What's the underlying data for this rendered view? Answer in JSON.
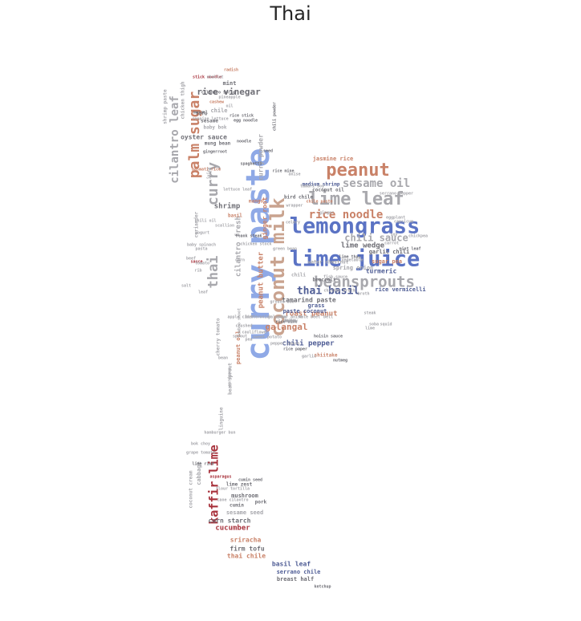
{
  "title": "Thai",
  "palette": {
    "blue": "#5b73c4",
    "light_blue": "#8fa9e6",
    "tan": "#c9a38f",
    "salmon": "#c98167",
    "red": "#a8323c",
    "gray": "#a8a8ad",
    "dark": "#6e6e75",
    "navy": "#4f5d95"
  },
  "words": [
    {
      "text": "curry paste",
      "color": "light_blue"
    },
    {
      "text": "lemongrass",
      "color": "blue"
    },
    {
      "text": "lime juice",
      "color": "blue"
    },
    {
      "text": "coconut milk",
      "color": "tan"
    },
    {
      "text": "peanut",
      "color": "salmon"
    },
    {
      "text": "lime leaf",
      "color": "gray"
    },
    {
      "text": "beansprouts",
      "color": "gray"
    },
    {
      "text": "palm sugar",
      "color": "salmon"
    },
    {
      "text": "thai",
      "color": "gray"
    },
    {
      "text": "curry",
      "color": "gray"
    },
    {
      "text": "cilantro leaf",
      "color": "gray"
    },
    {
      "text": "rice noodle",
      "color": "salmon"
    },
    {
      "text": "sesame oil",
      "color": "gray"
    },
    {
      "text": "thai basil",
      "color": "navy"
    },
    {
      "text": "chili sauce",
      "color": "gray"
    },
    {
      "text": "kaffir lime",
      "color": "red"
    },
    {
      "text": "rice vinegar",
      "color": "dark"
    },
    {
      "text": "galangal",
      "color": "salmon"
    },
    {
      "text": "chili pepper",
      "color": "navy"
    },
    {
      "text": "shrimp",
      "color": "dark"
    },
    {
      "text": "cilantro fresh",
      "color": "gray"
    },
    {
      "text": "peanut butter",
      "color": "salmon"
    },
    {
      "text": "lime wedge",
      "color": "dark"
    },
    {
      "text": "roast peanut",
      "color": "salmon"
    },
    {
      "text": "curry powder",
      "color": "gray"
    },
    {
      "text": "ginger root",
      "color": "salmon"
    },
    {
      "text": "oyster sauce",
      "color": "dark"
    },
    {
      "text": "turmeric",
      "color": "navy"
    },
    {
      "text": "rice vermicelli",
      "color": "navy"
    },
    {
      "text": "sugar pea",
      "color": "salmon"
    },
    {
      "text": "garlic chili",
      "color": "dark"
    },
    {
      "text": "jasmine rice",
      "color": "salmon"
    },
    {
      "text": "paste coconut",
      "color": "navy"
    },
    {
      "text": "tamarind paste",
      "color": "dark"
    },
    {
      "text": "spring onion",
      "color": "gray"
    },
    {
      "text": "grass",
      "color": "navy"
    },
    {
      "text": "mint",
      "color": "dark"
    },
    {
      "text": "chile",
      "color": "gray"
    },
    {
      "text": "peanut oil",
      "color": "salmon"
    },
    {
      "text": "cucumber",
      "color": "red"
    },
    {
      "text": "sriracha",
      "color": "salmon"
    },
    {
      "text": "firm tofu",
      "color": "dark"
    },
    {
      "text": "thai chile",
      "color": "salmon"
    },
    {
      "text": "basil leaf",
      "color": "navy"
    },
    {
      "text": "serrano chile",
      "color": "navy"
    },
    {
      "text": "breast half",
      "color": "dark"
    },
    {
      "text": "corn starch",
      "color": "dark"
    },
    {
      "text": "mushroom",
      "color": "dark"
    },
    {
      "text": "sesame seed",
      "color": "gray"
    },
    {
      "text": "cumin",
      "color": "dark"
    },
    {
      "text": "pork",
      "color": "dark"
    },
    {
      "text": "lime zest",
      "color": "dark"
    },
    {
      "text": "cabbage",
      "color": "gray"
    },
    {
      "text": "coconut cream",
      "color": "gray"
    },
    {
      "text": "shrimp paste",
      "color": "gray"
    },
    {
      "text": "chicken thigh",
      "color": "gray"
    },
    {
      "text": "baby bok",
      "color": "gray"
    },
    {
      "text": "mung bean",
      "color": "dark"
    },
    {
      "text": "tofu",
      "color": "dark"
    },
    {
      "text": "sesame",
      "color": "dark"
    },
    {
      "text": "medium shrimp",
      "color": "navy"
    },
    {
      "text": "coconut oil",
      "color": "dark"
    },
    {
      "text": "bird chile",
      "color": "dark"
    },
    {
      "text": "basil",
      "color": "salmon"
    },
    {
      "text": "mango",
      "color": "salmon"
    },
    {
      "text": "shiitake",
      "color": "salmon"
    },
    {
      "text": "water chestnut",
      "color": "gray"
    },
    {
      "text": "broccoli",
      "color": "dark"
    },
    {
      "text": "chili",
      "color": "gray"
    },
    {
      "text": "coriander",
      "color": "gray"
    },
    {
      "text": "cherry tomato",
      "color": "gray"
    },
    {
      "text": "bean sprout",
      "color": "gray"
    },
    {
      "text": "linguine",
      "color": "gray"
    },
    {
      "text": "seed",
      "color": "dark"
    },
    {
      "text": "spaghetti",
      "color": "dark"
    },
    {
      "text": "gingerroot",
      "color": "dark"
    },
    {
      "text": "romaine lettuce",
      "color": "gray"
    },
    {
      "text": "cashew",
      "color": "salmon"
    },
    {
      "text": "radish",
      "color": "salmon"
    },
    {
      "text": "stick noodle",
      "color": "red"
    },
    {
      "text": "rice paper",
      "color": "dark"
    },
    {
      "text": "ketchup",
      "color": "dark"
    },
    {
      "text": "eggplant",
      "color": "gray"
    },
    {
      "text": "mint leaf",
      "color": "dark"
    },
    {
      "text": "serrano pepper",
      "color": "gray"
    },
    {
      "text": "corn",
      "color": "gray"
    },
    {
      "text": "pineapple",
      "color": "gray"
    },
    {
      "text": "basmati rice",
      "color": "salmon"
    },
    {
      "text": "sauce",
      "color": "red"
    },
    {
      "text": "cardamom",
      "color": "gray"
    },
    {
      "text": "asparagus",
      "color": "red"
    },
    {
      "text": "chicken broth",
      "color": "gray"
    },
    {
      "text": "flank steak",
      "color": "dark"
    },
    {
      "text": "tamari soy",
      "color": "gray"
    },
    {
      "text": "hoisin sauce",
      "color": "dark"
    },
    {
      "text": "chile paste",
      "color": "salmon"
    },
    {
      "text": "rice wine",
      "color": "dark"
    },
    {
      "text": "lime thai",
      "color": "dark"
    },
    {
      "text": "vegetable",
      "color": "gray"
    },
    {
      "text": "cilantro sprig",
      "color": "dark"
    },
    {
      "text": "oil",
      "color": "gray"
    },
    {
      "text": "noodle",
      "color": "dark"
    },
    {
      "text": "chili powder",
      "color": "dark"
    },
    {
      "text": "mussel",
      "color": "dark"
    },
    {
      "text": "rice stick",
      "color": "dark"
    },
    {
      "text": "hamburger bun",
      "color": "gray"
    },
    {
      "text": "grape tomato",
      "color": "gray"
    },
    {
      "text": "lime rind",
      "color": "dark"
    },
    {
      "text": "bok choy",
      "color": "gray"
    },
    {
      "text": "flour tortilla",
      "color": "gray"
    },
    {
      "text": "cane cilantro",
      "color": "gray"
    },
    {
      "text": "cumin seed",
      "color": "dark"
    },
    {
      "text": "nutmeg",
      "color": "dark"
    },
    {
      "text": "fish sauce",
      "color": "gray"
    },
    {
      "text": "broth",
      "color": "gray"
    },
    {
      "text": "chickpea",
      "color": "gray"
    },
    {
      "text": "capsicum",
      "color": "gray"
    },
    {
      "text": "chicken stock",
      "color": "gray"
    },
    {
      "text": "rice mine",
      "color": "dark"
    },
    {
      "text": "ground beef",
      "color": "gray"
    },
    {
      "text": "lettuce leaf",
      "color": "gray"
    },
    {
      "text": "celery",
      "color": "gray"
    },
    {
      "text": "green bean",
      "color": "gray"
    },
    {
      "text": "anise",
      "color": "gray"
    },
    {
      "text": "shallot",
      "color": "gray"
    },
    {
      "text": "egg noodle",
      "color": "dark"
    },
    {
      "text": "juice",
      "color": "gray"
    },
    {
      "text": "bamboo shoot",
      "color": "gray"
    },
    {
      "text": "baby spinach",
      "color": "gray"
    },
    {
      "text": "scallion",
      "color": "gray"
    },
    {
      "text": "lime",
      "color": "gray"
    },
    {
      "text": "crushed",
      "color": "gray"
    },
    {
      "text": "tomato",
      "color": "gray"
    },
    {
      "text": "carrot",
      "color": "gray"
    },
    {
      "text": "steak",
      "color": "gray"
    },
    {
      "text": "cauliflower",
      "color": "gray"
    },
    {
      "text": "sweet potato",
      "color": "gray"
    },
    {
      "text": "pepper sauce",
      "color": "gray"
    },
    {
      "text": "wrapper",
      "color": "gray"
    },
    {
      "text": "sprout",
      "color": "gray"
    },
    {
      "text": "pea",
      "color": "gray"
    },
    {
      "text": "garlic",
      "color": "gray"
    },
    {
      "text": "ginger",
      "color": "gray"
    },
    {
      "text": "soy",
      "color": "gray"
    },
    {
      "text": "bean",
      "color": "gray"
    },
    {
      "text": "leaf",
      "color": "gray"
    },
    {
      "text": "rib",
      "color": "gray"
    },
    {
      "text": "beef",
      "color": "gray"
    },
    {
      "text": "salt",
      "color": "gray"
    },
    {
      "text": "apple cider",
      "color": "gray"
    },
    {
      "text": "butter",
      "color": "gray"
    },
    {
      "text": "onion",
      "color": "gray"
    },
    {
      "text": "jalapeno",
      "color": "gray"
    },
    {
      "text": "star anise",
      "color": "gray"
    },
    {
      "text": "kale",
      "color": "gray"
    },
    {
      "text": "beet",
      "color": "gray"
    },
    {
      "text": "bell",
      "color": "gray"
    },
    {
      "text": "yogurt",
      "color": "gray"
    },
    {
      "text": "chili oil",
      "color": "gray"
    },
    {
      "text": "pasta",
      "color": "gray"
    },
    {
      "text": "soba",
      "color": "gray"
    },
    {
      "text": "squid",
      "color": "gray"
    },
    {
      "text": "sake",
      "color": "gray"
    },
    {
      "text": "sherry",
      "color": "gray"
    },
    {
      "text": "thigh",
      "color": "gray"
    },
    {
      "text": "lemon",
      "color": "gray"
    },
    {
      "text": "cream",
      "color": "gray"
    },
    {
      "text": "milk",
      "color": "gray"
    }
  ]
}
